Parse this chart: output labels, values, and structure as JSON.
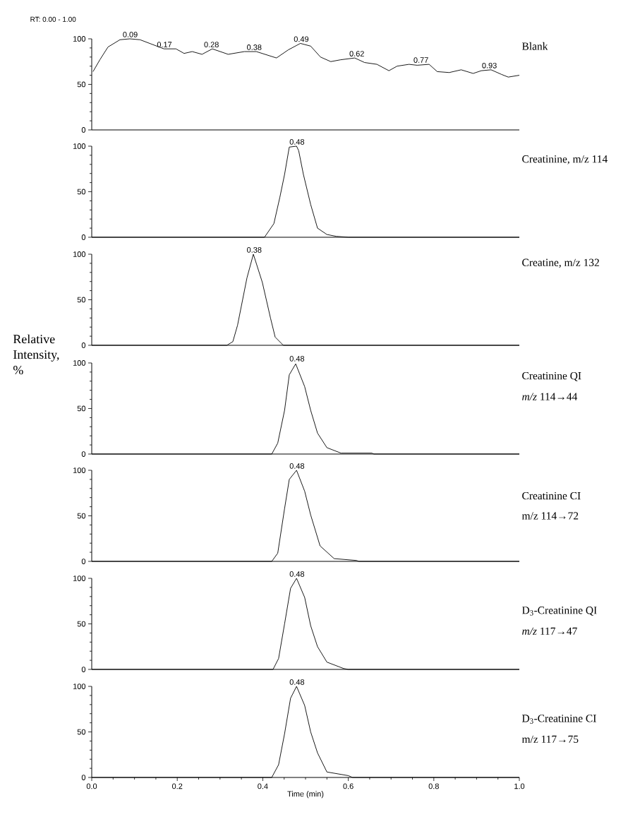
{
  "chart_data": [
    {
      "type": "line",
      "title": "Blank",
      "color": "#000000",
      "xlim": [
        0,
        1
      ],
      "ylim": [
        0,
        100
      ],
      "yticks": [
        0,
        50,
        100
      ],
      "tick_labels": "y",
      "x": [
        0.003,
        0.019,
        0.038,
        0.066,
        0.089,
        0.113,
        0.141,
        0.169,
        0.197,
        0.216,
        0.235,
        0.258,
        0.282,
        0.319,
        0.357,
        0.385,
        0.432,
        0.46,
        0.488,
        0.512,
        0.535,
        0.559,
        0.582,
        0.615,
        0.638,
        0.667,
        0.695,
        0.714,
        0.742,
        0.761,
        0.789,
        0.808,
        0.836,
        0.864,
        0.892,
        0.911,
        0.934,
        0.958,
        0.974,
        1.0
      ],
      "values": [
        64,
        77,
        91,
        99,
        100,
        99,
        94,
        89,
        89,
        84,
        86,
        83,
        89,
        83,
        86,
        86,
        79,
        88,
        95,
        92,
        80,
        75,
        77,
        79,
        74,
        72,
        65,
        70,
        72,
        71,
        72,
        64,
        63,
        66,
        62,
        65,
        66,
        61,
        58,
        60
      ],
      "annotations": [
        "RT: 0.00 - 1.00",
        {
          "text": "0.09",
          "x": 0.09,
          "y": 100
        },
        {
          "text": "0.17",
          "x": 0.17,
          "y": 89
        },
        {
          "text": "0.28",
          "x": 0.28,
          "y": 89
        },
        {
          "text": "0.38",
          "x": 0.38,
          "y": 86
        },
        {
          "text": "0.49",
          "x": 0.49,
          "y": 95
        },
        {
          "text": "0.62",
          "x": 0.62,
          "y": 79
        },
        {
          "text": "0.77",
          "x": 0.77,
          "y": 72
        },
        {
          "text": "0.93",
          "x": 0.93,
          "y": 66
        }
      ]
    },
    {
      "type": "line",
      "title": "Creatinine, m/z 114",
      "color": "#000000",
      "xlim": [
        0,
        1
      ],
      "ylim": [
        0,
        100
      ],
      "yticks": [
        0,
        50,
        100
      ],
      "tick_labels": "y",
      "x": [
        0.0,
        0.404,
        0.426,
        0.44,
        0.451,
        0.462,
        0.479,
        0.484,
        0.495,
        0.512,
        0.528,
        0.55,
        0.572,
        0.6,
        1.0
      ],
      "values": [
        0,
        0,
        15,
        44,
        69,
        99,
        100,
        95,
        69,
        36,
        10,
        3,
        1,
        0,
        0
      ],
      "annotations": [
        {
          "text": "0.48",
          "x": 0.48,
          "y": 100
        }
      ]
    },
    {
      "type": "line",
      "title": "Creatine, m/z 132",
      "color": "#000000",
      "xlim": [
        0,
        1
      ],
      "ylim": [
        0,
        100
      ],
      "yticks": [
        0,
        50,
        100
      ],
      "tick_labels": "y",
      "x": [
        0.0,
        0.316,
        0.33,
        0.341,
        0.363,
        0.378,
        0.399,
        0.418,
        0.429,
        0.448,
        1.0
      ],
      "values": [
        0,
        0,
        4,
        22,
        74,
        100,
        69,
        30,
        9,
        0,
        0
      ],
      "annotations": [
        {
          "text": "0.38",
          "x": 0.38,
          "y": 100
        }
      ]
    },
    {
      "type": "line",
      "title": "Creatinine QI",
      "subtitle": "*m/z* 114→44",
      "ylabel": "Relative Intensity, %",
      "color": "#000000",
      "xlim": [
        0,
        1
      ],
      "ylim": [
        0,
        100
      ],
      "yticks": [
        0,
        50,
        100
      ],
      "tick_labels": "y",
      "x": [
        0.0,
        0.421,
        0.435,
        0.451,
        0.462,
        0.477,
        0.498,
        0.512,
        0.528,
        0.55,
        0.583,
        0.655,
        0.66,
        1.0
      ],
      "values": [
        0,
        0,
        12,
        48,
        87,
        99,
        74,
        48,
        23,
        7,
        1,
        1,
        0,
        0
      ],
      "annotations": [
        {
          "text": "0.48",
          "x": 0.48,
          "y": 100
        }
      ]
    },
    {
      "type": "line",
      "title": "Creatinine CI",
      "subtitle": "m/z 114→72",
      "color": "#000000",
      "xlim": [
        0,
        1
      ],
      "ylim": [
        0,
        100
      ],
      "yticks": [
        0,
        50,
        100
      ],
      "tick_labels": "y",
      "x": [
        0.0,
        0.421,
        0.435,
        0.451,
        0.462,
        0.479,
        0.498,
        0.512,
        0.534,
        0.567,
        0.619,
        0.625,
        1.0
      ],
      "values": [
        0,
        0,
        9,
        58,
        90,
        100,
        77,
        51,
        17,
        3,
        1,
        0,
        0
      ],
      "annotations": [
        {
          "text": "0.48",
          "x": 0.48,
          "y": 100
        }
      ]
    },
    {
      "type": "line",
      "title": "D$_{3}$-Creatinine QI",
      "subtitle": "*m/z* 117→47",
      "color": "#000000",
      "xlim": [
        0,
        1
      ],
      "ylim": [
        0,
        100
      ],
      "yticks": [
        0,
        50,
        100
      ],
      "tick_labels": "y",
      "x": [
        0.0,
        0.424,
        0.437,
        0.451,
        0.465,
        0.479,
        0.498,
        0.512,
        0.528,
        0.55,
        0.589,
        0.6,
        1.0
      ],
      "values": [
        0,
        0,
        12,
        50,
        89,
        100,
        79,
        48,
        25,
        8,
        1,
        0,
        0
      ],
      "annotations": [
        {
          "text": "0.48",
          "x": 0.48,
          "y": 100
        }
      ]
    },
    {
      "type": "line",
      "title": "D$_{3}$-Creatinine CI",
      "subtitle": "m/z 117→75",
      "xlabel": "Time (min)",
      "color": "#000000",
      "xlim": [
        0,
        1
      ],
      "ylim": [
        0,
        100
      ],
      "yticks": [
        0,
        50,
        100
      ],
      "xticks": [
        {
          "value": 0,
          "label": "0.0"
        },
        {
          "value": 0.2,
          "label": "0.2"
        },
        {
          "value": 0.4,
          "label": "0.4"
        },
        {
          "value": 0.6,
          "label": "0.6"
        },
        {
          "value": 0.8,
          "label": "0.8"
        },
        {
          "value": 1,
          "label": "1.0"
        }
      ],
      "x": [
        0.0,
        0.421,
        0.437,
        0.451,
        0.465,
        0.479,
        0.498,
        0.512,
        0.528,
        0.55,
        0.6,
        0.61,
        1.0
      ],
      "values": [
        0,
        0,
        14,
        48,
        87,
        100,
        79,
        50,
        27,
        6,
        2,
        0,
        0
      ],
      "annotations": [
        {
          "text": "0.48",
          "x": 0.48,
          "y": 100
        }
      ]
    }
  ]
}
